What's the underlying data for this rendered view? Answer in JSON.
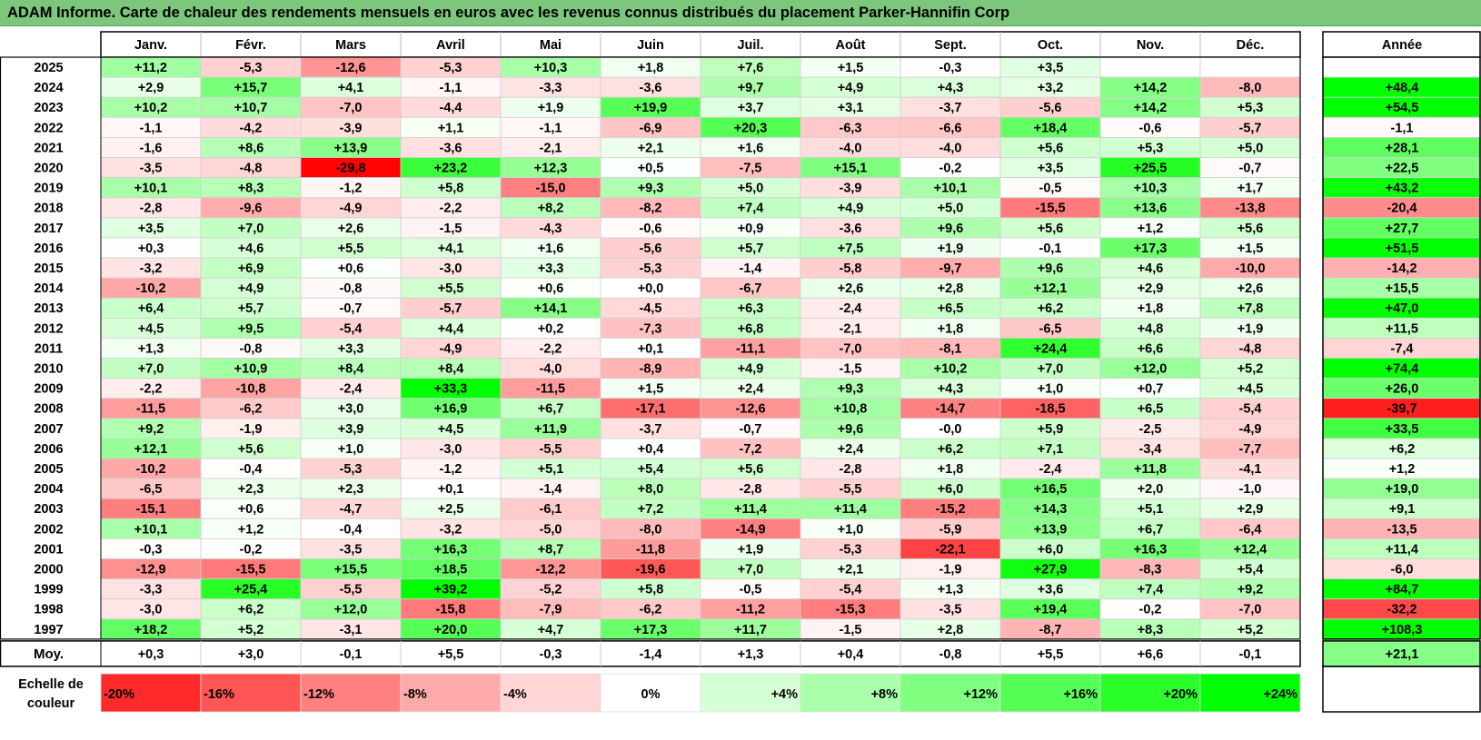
{
  "title": "ADAM Informe. Carte de chaleur des rendements mensuels en euros avec les revenus connus distribués du placement Parker-Hannifin Corp",
  "chart_data": {
    "type": "heatmap",
    "title": "ADAM Informe. Carte de chaleur des rendements mensuels en euros avec les revenus connus distribués du placement Parker-Hannifin Corp",
    "months": [
      "Janv.",
      "Févr.",
      "Mars",
      "Avril",
      "Mai",
      "Juin",
      "Juil.",
      "Août",
      "Sept.",
      "Oct.",
      "Nov.",
      "Déc."
    ],
    "year_header": "Année",
    "rows": [
      {
        "year": "2025",
        "values": [
          "+11,2",
          "-5,3",
          "-12,6",
          "-5,3",
          "+10,3",
          "+1,8",
          "+7,6",
          "+1,5",
          "-0,3",
          "+3,5",
          "",
          ""
        ],
        "annual": ""
      },
      {
        "year": "2024",
        "values": [
          "+2,9",
          "+15,7",
          "+4,1",
          "-1,1",
          "-3,3",
          "-3,6",
          "+9,7",
          "+4,9",
          "+4,3",
          "+3,2",
          "+14,2",
          "-8,0"
        ],
        "annual": "+48,4"
      },
      {
        "year": "2023",
        "values": [
          "+10,2",
          "+10,7",
          "-7,0",
          "-4,4",
          "+1,9",
          "+19,9",
          "+3,7",
          "+3,1",
          "-3,7",
          "-5,6",
          "+14,2",
          "+5,3"
        ],
        "annual": "+54,5"
      },
      {
        "year": "2022",
        "values": [
          "-1,1",
          "-4,2",
          "-3,9",
          "+1,1",
          "-1,1",
          "-6,9",
          "+20,3",
          "-6,3",
          "-6,6",
          "+18,4",
          "-0,6",
          "-5,7"
        ],
        "annual": "-1,1"
      },
      {
        "year": "2021",
        "values": [
          "-1,6",
          "+8,6",
          "+13,9",
          "-3,6",
          "-2,1",
          "+2,1",
          "+1,6",
          "-4,0",
          "-4,0",
          "+5,6",
          "+5,3",
          "+5,0"
        ],
        "annual": "+28,1"
      },
      {
        "year": "2020",
        "values": [
          "-3,5",
          "-4,8",
          "-29,8",
          "+23,2",
          "+12,3",
          "+0,5",
          "-7,5",
          "+15,1",
          "-0,2",
          "+3,5",
          "+25,5",
          "-0,7"
        ],
        "annual": "+22,5"
      },
      {
        "year": "2019",
        "values": [
          "+10,1",
          "+8,3",
          "-1,2",
          "+5,8",
          "-15,0",
          "+9,3",
          "+5,0",
          "-3,9",
          "+10,1",
          "-0,5",
          "+10,3",
          "+1,7"
        ],
        "annual": "+43,2"
      },
      {
        "year": "2018",
        "values": [
          "-2,8",
          "-9,6",
          "-4,9",
          "-2,2",
          "+8,2",
          "-8,2",
          "+7,4",
          "+4,9",
          "+5,0",
          "-15,5",
          "+13,6",
          "-13,8"
        ],
        "annual": "-20,4"
      },
      {
        "year": "2017",
        "values": [
          "+3,5",
          "+7,0",
          "+2,6",
          "-1,5",
          "-4,3",
          "-0,6",
          "+0,9",
          "-3,6",
          "+9,6",
          "+5,6",
          "+1,2",
          "+5,6"
        ],
        "annual": "+27,7"
      },
      {
        "year": "2016",
        "values": [
          "+0,3",
          "+4,6",
          "+5,5",
          "+4,1",
          "+1,6",
          "-5,6",
          "+5,7",
          "+7,5",
          "+1,9",
          "-0,1",
          "+17,3",
          "+1,5"
        ],
        "annual": "+51,5"
      },
      {
        "year": "2015",
        "values": [
          "-3,2",
          "+6,9",
          "+0,6",
          "-3,0",
          "+3,3",
          "-5,3",
          "-1,4",
          "-5,8",
          "-9,7",
          "+9,6",
          "+4,6",
          "-10,0"
        ],
        "annual": "-14,2"
      },
      {
        "year": "2014",
        "values": [
          "-10,2",
          "+4,9",
          "-0,8",
          "+5,5",
          "+0,6",
          "+0,0",
          "-6,7",
          "+2,6",
          "+2,8",
          "+12,1",
          "+2,9",
          "+2,6"
        ],
        "annual": "+15,5"
      },
      {
        "year": "2013",
        "values": [
          "+6,4",
          "+5,7",
          "-0,7",
          "-5,7",
          "+14,1",
          "-4,5",
          "+6,3",
          "-2,4",
          "+6,5",
          "+6,2",
          "+1,8",
          "+7,8"
        ],
        "annual": "+47,0"
      },
      {
        "year": "2012",
        "values": [
          "+4,5",
          "+9,5",
          "-5,4",
          "+4,4",
          "+0,2",
          "-7,3",
          "+6,8",
          "-2,1",
          "+1,8",
          "-6,5",
          "+4,8",
          "+1,9"
        ],
        "annual": "+11,5"
      },
      {
        "year": "2011",
        "values": [
          "+1,3",
          "-0,8",
          "+3,3",
          "-4,9",
          "-2,2",
          "+0,1",
          "-11,1",
          "-7,0",
          "-8,1",
          "+24,4",
          "+6,6",
          "-4,8"
        ],
        "annual": "-7,4"
      },
      {
        "year": "2010",
        "values": [
          "+7,0",
          "+10,9",
          "+8,4",
          "+8,4",
          "-4,0",
          "-8,9",
          "+4,9",
          "-1,5",
          "+10,2",
          "+7,0",
          "+12,0",
          "+5,2"
        ],
        "annual": "+74,4"
      },
      {
        "year": "2009",
        "values": [
          "-2,2",
          "-10,8",
          "-2,4",
          "+33,3",
          "-11,5",
          "+1,5",
          "+2,4",
          "+9,3",
          "+4,3",
          "+1,0",
          "+0,7",
          "+4,5"
        ],
        "annual": "+26,0"
      },
      {
        "year": "2008",
        "values": [
          "-11,5",
          "-6,2",
          "+3,0",
          "+16,9",
          "+6,7",
          "-17,1",
          "-12,6",
          "+10,8",
          "-14,7",
          "-18,5",
          "+6,5",
          "-5,4"
        ],
        "annual": "-39,7"
      },
      {
        "year": "2007",
        "values": [
          "+9,2",
          "-1,9",
          "+3,9",
          "+4,5",
          "+11,9",
          "-3,7",
          "-0,7",
          "+9,6",
          "-0,0",
          "+5,9",
          "-2,5",
          "-4,9"
        ],
        "annual": "+33,5"
      },
      {
        "year": "2006",
        "values": [
          "+12,1",
          "+5,6",
          "+1,0",
          "-3,0",
          "-5,5",
          "+0,4",
          "-7,2",
          "+2,4",
          "+6,2",
          "+7,1",
          "-3,4",
          "-7,7"
        ],
        "annual": "+6,2"
      },
      {
        "year": "2005",
        "values": [
          "-10,2",
          "-0,4",
          "-5,3",
          "-1,2",
          "+5,1",
          "+5,4",
          "+5,6",
          "-2,8",
          "+1,8",
          "-2,4",
          "+11,8",
          "-4,1"
        ],
        "annual": "+1,2"
      },
      {
        "year": "2004",
        "values": [
          "-6,5",
          "+2,3",
          "+2,3",
          "+0,1",
          "-1,4",
          "+8,0",
          "-2,8",
          "-5,5",
          "+6,0",
          "+16,5",
          "+2,0",
          "-1,0"
        ],
        "annual": "+19,0"
      },
      {
        "year": "2003",
        "values": [
          "-15,1",
          "+0,6",
          "-4,7",
          "+2,5",
          "-6,1",
          "+7,2",
          "+11,4",
          "+11,4",
          "-15,2",
          "+14,3",
          "+5,1",
          "+2,9"
        ],
        "annual": "+9,1"
      },
      {
        "year": "2002",
        "values": [
          "+10,1",
          "+1,2",
          "-0,4",
          "-3,2",
          "-5,0",
          "-8,0",
          "-14,9",
          "+1,0",
          "-5,9",
          "+13,9",
          "+6,7",
          "-6,4"
        ],
        "annual": "-13,5"
      },
      {
        "year": "2001",
        "values": [
          "-0,3",
          "-0,2",
          "-3,5",
          "+16,3",
          "+8,7",
          "-11,8",
          "+1,9",
          "-5,3",
          "-22,1",
          "+6,0",
          "+16,3",
          "+12,4"
        ],
        "annual": "+11,4"
      },
      {
        "year": "2000",
        "values": [
          "-12,9",
          "-15,5",
          "+15,5",
          "+18,5",
          "-12,2",
          "-19,6",
          "+7,0",
          "+2,1",
          "-1,9",
          "+27,9",
          "-8,3",
          "+5,4"
        ],
        "annual": "-6,0"
      },
      {
        "year": "1999",
        "values": [
          "-3,3",
          "+25,4",
          "-5,5",
          "+39,2",
          "-5,2",
          "+5,8",
          "-0,5",
          "-5,4",
          "+1,3",
          "+3,6",
          "+7,4",
          "+9,2"
        ],
        "annual": "+84,7"
      },
      {
        "year": "1998",
        "values": [
          "-3,0",
          "+6,2",
          "+12,0",
          "-15,8",
          "-7,9",
          "-6,2",
          "-11,2",
          "-15,3",
          "-3,5",
          "+19,4",
          "-0,2",
          "-7,0"
        ],
        "annual": "-32,2"
      },
      {
        "year": "1997",
        "values": [
          "+18,2",
          "+5,2",
          "-3,1",
          "+20,0",
          "+4,7",
          "+17,3",
          "+11,7",
          "-1,5",
          "+2,8",
          "-8,7",
          "+8,3",
          "+5,2"
        ],
        "annual": "+108,3"
      }
    ],
    "average_row": {
      "label": "Moy.",
      "values": [
        "+0,3",
        "+3,0",
        "-0,1",
        "+5,5",
        "-0,3",
        "-1,4",
        "+1,3",
        "+0,4",
        "-0,8",
        "+5,5",
        "+6,6",
        "-0,1"
      ],
      "annual": "+21,1"
    },
    "scale": {
      "label": "Echelle de couleur",
      "steps": [
        {
          "label": "-20%",
          "value": -20
        },
        {
          "label": "-16%",
          "value": -16
        },
        {
          "label": "-12%",
          "value": -12
        },
        {
          "label": "-8%",
          "value": -8
        },
        {
          "label": "-4%",
          "value": -4
        },
        {
          "label": "0%",
          "value": 0
        },
        {
          "label": "+4%",
          "value": 4
        },
        {
          "label": "+8%",
          "value": 8
        },
        {
          "label": "+12%",
          "value": 12
        },
        {
          "label": "+16%",
          "value": 16
        },
        {
          "label": "+20%",
          "value": 20
        },
        {
          "label": "+24%",
          "value": 24
        }
      ]
    },
    "colors": {
      "negative": "#ff0000",
      "positive": "#00ff00",
      "neutral": "#ffffff",
      "title_bg": "#7cc77c"
    }
  }
}
